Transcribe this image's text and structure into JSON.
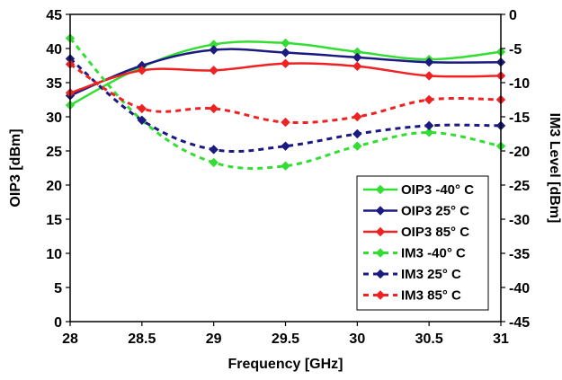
{
  "chart_data": {
    "type": "line",
    "title": "",
    "xlabel": "Frequency [GHz]",
    "ylabel": "OIP3 [dBm]",
    "y2label": "IM3 Level [dBm]",
    "x": [
      28,
      28.5,
      29,
      29.5,
      30,
      30.5,
      31
    ],
    "xlim": [
      28,
      31
    ],
    "ylim": [
      0,
      45
    ],
    "y2lim": [
      -45,
      0
    ],
    "x_ticks": [
      "28",
      "28.5",
      "29",
      "29.5",
      "30",
      "30.5",
      "31"
    ],
    "y_ticks": [
      "0",
      "5",
      "10",
      "15",
      "20",
      "25",
      "30",
      "35",
      "40",
      "45"
    ],
    "y2_ticks": [
      "-45",
      "-40",
      "-35",
      "-30",
      "-25",
      "-20",
      "-15",
      "-10",
      "-5",
      "0"
    ],
    "grid": false,
    "legend_position": "bottom-right",
    "series": [
      {
        "name": "OIP3 -40° C",
        "axis": "left",
        "color": "#33dd33",
        "dash": false,
        "values": [
          31.7,
          37.3,
          40.6,
          40.8,
          39.5,
          38.4,
          39.5
        ]
      },
      {
        "name": "OIP3 25° C",
        "axis": "left",
        "color": "#1a1a80",
        "dash": false,
        "values": [
          33.1,
          37.5,
          39.8,
          39.4,
          38.7,
          38.0,
          38.0
        ]
      },
      {
        "name": "OIP3 85° C",
        "axis": "left",
        "color": "#ee2222",
        "dash": false,
        "values": [
          33.5,
          36.8,
          36.8,
          37.8,
          37.4,
          36.0,
          36.0
        ]
      },
      {
        "name": "IM3 -40° C",
        "axis": "right",
        "color": "#33dd33",
        "dash": true,
        "values": [
          -3.5,
          -15.5,
          -21.7,
          -22.2,
          -19.3,
          -17.3,
          -19.3
        ]
      },
      {
        "name": "IM3 25° C",
        "axis": "right",
        "color": "#1a1a80",
        "dash": true,
        "values": [
          -6.5,
          -15.5,
          -19.8,
          -19.3,
          -17.5,
          -16.3,
          -16.3
        ]
      },
      {
        "name": "IM3 85° C",
        "axis": "right",
        "color": "#ee2222",
        "dash": true,
        "values": [
          -7.3,
          -13.8,
          -13.8,
          -15.8,
          -15.0,
          -12.5,
          -12.5
        ]
      }
    ]
  }
}
